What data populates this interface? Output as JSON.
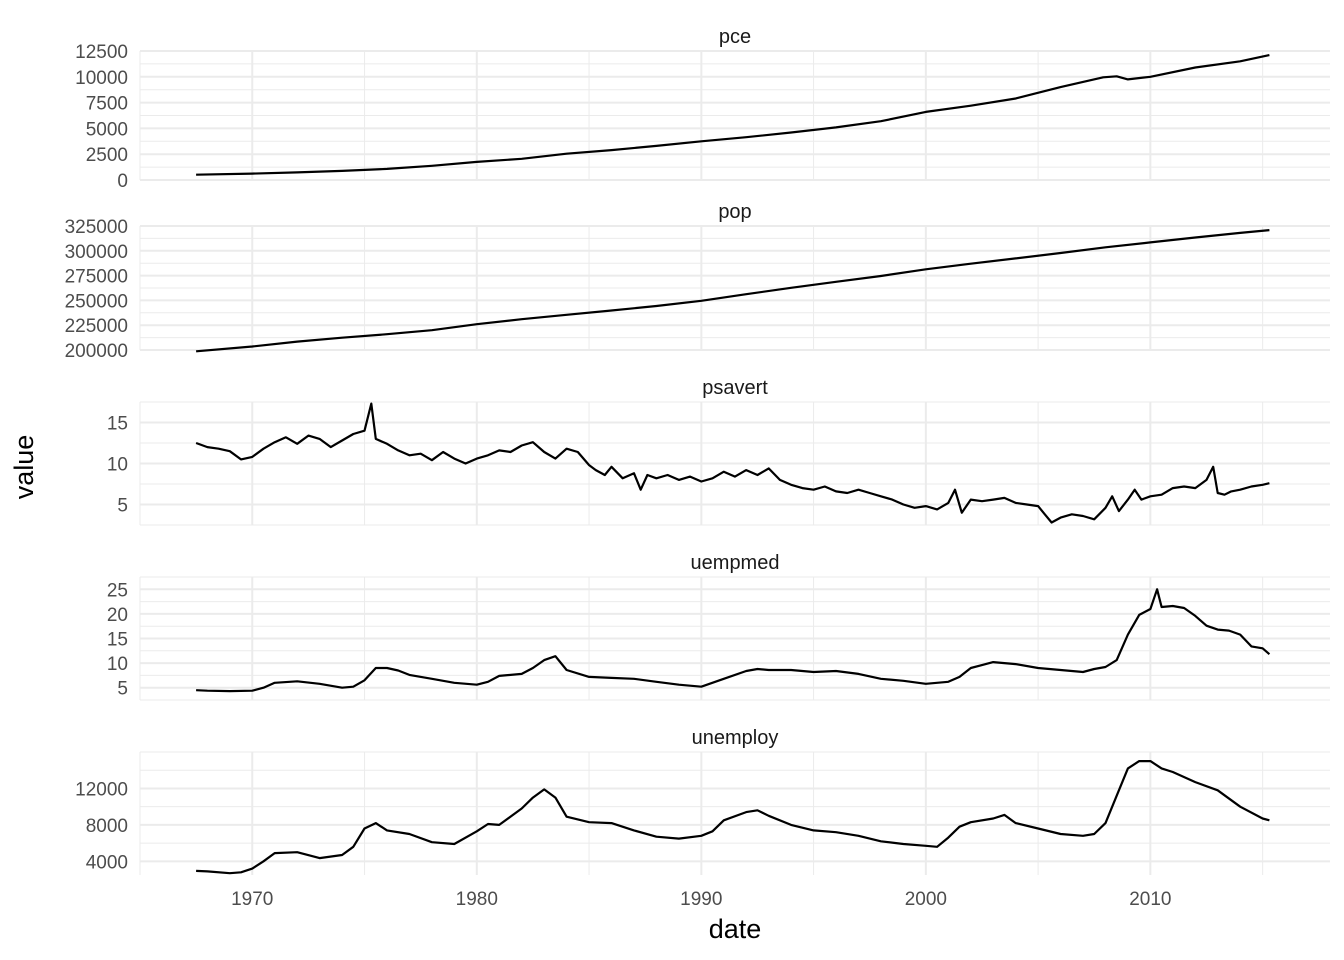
{
  "chart_data": {
    "type": "line",
    "xlabel": "date",
    "ylabel": "value",
    "x_ticks": [
      "1970",
      "1980",
      "1990",
      "2000",
      "2010"
    ],
    "x_range": [
      1965.0,
      2018.0
    ],
    "grid": true,
    "colors": {
      "line": "#000000",
      "grid": "#ebebeb",
      "text": "#4d4d4d"
    },
    "panels": [
      {
        "name": "pce",
        "ylim": [
          0,
          12500
        ],
        "y_ticks": [
          "0",
          "2500",
          "5000",
          "7500",
          "10000",
          "12500"
        ],
        "x": [
          1967.5,
          1970,
          1972,
          1974,
          1976,
          1978,
          1980,
          1982,
          1984,
          1986,
          1988,
          1990,
          1992,
          1994,
          1996,
          1998,
          2000,
          2002,
          2004,
          2006,
          2007.9,
          2008.5,
          2009.0,
          2010,
          2012,
          2014,
          2015.3
        ],
        "y": [
          510,
          620,
          740,
          880,
          1080,
          1380,
          1750,
          2050,
          2550,
          2900,
          3300,
          3750,
          4150,
          4600,
          5100,
          5700,
          6600,
          7200,
          7900,
          9000,
          9950,
          10050,
          9750,
          10000,
          10900,
          11500,
          12100
        ]
      },
      {
        "name": "pop",
        "ylim": [
          200000,
          325000
        ],
        "y_ticks": [
          "200000",
          "225000",
          "250000",
          "275000",
          "300000",
          "325000"
        ],
        "x": [
          1967.5,
          1970,
          1972,
          1974,
          1976,
          1978,
          1980,
          1982,
          1984,
          1986,
          1988,
          1990,
          1992,
          1994,
          1996,
          1998,
          2000,
          2002,
          2004,
          2006,
          2008,
          2010,
          2012,
          2014,
          2015.3
        ],
        "y": [
          198700,
          203500,
          208500,
          212400,
          215900,
          220000,
          226000,
          231000,
          235500,
          239800,
          244400,
          249600,
          256300,
          262700,
          268800,
          274600,
          281400,
          287000,
          292300,
          297800,
          303500,
          308500,
          313400,
          318000,
          320900
        ]
      },
      {
        "name": "psavert",
        "ylim": [
          2.5,
          17.5
        ],
        "y_ticks": [
          "5",
          "10",
          "15"
        ],
        "x": [
          1967.5,
          1968,
          1968.5,
          1969,
          1969.5,
          1970,
          1970.5,
          1971,
          1971.5,
          1972,
          1972.5,
          1973,
          1973.5,
          1974,
          1974.5,
          1975,
          1975.3,
          1975.5,
          1976,
          1976.5,
          1977,
          1977.5,
          1978,
          1978.5,
          1979,
          1979.5,
          1980,
          1980.5,
          1981,
          1981.5,
          1982,
          1982.5,
          1983,
          1983.5,
          1984,
          1984.5,
          1985,
          1985.3,
          1985.7,
          1986,
          1986.5,
          1987,
          1987.3,
          1987.6,
          1988,
          1988.5,
          1989,
          1989.5,
          1990,
          1990.5,
          1991,
          1991.5,
          1992,
          1992.5,
          1993,
          1993.5,
          1994,
          1994.5,
          1995,
          1995.5,
          1996,
          1996.5,
          1997,
          1997.5,
          1998,
          1998.5,
          1999,
          1999.5,
          2000,
          2000.5,
          2001,
          2001.3,
          2001.6,
          2002,
          2002.5,
          2003,
          2003.5,
          2004,
          2004.5,
          2005,
          2005.3,
          2005.6,
          2006,
          2006.5,
          2007,
          2007.5,
          2008,
          2008.3,
          2008.6,
          2009,
          2009.3,
          2009.6,
          2010,
          2010.5,
          2011,
          2011.5,
          2012,
          2012.5,
          2012.8,
          2013,
          2013.3,
          2013.6,
          2014,
          2014.5,
          2015,
          2015.3
        ],
        "y": [
          12.5,
          12.0,
          11.8,
          11.5,
          10.5,
          10.8,
          11.8,
          12.6,
          13.2,
          12.4,
          13.4,
          13.0,
          12.0,
          12.8,
          13.6,
          14.0,
          17.3,
          13.0,
          12.4,
          11.6,
          11.0,
          11.2,
          10.4,
          11.4,
          10.6,
          10.0,
          10.6,
          11.0,
          11.6,
          11.4,
          12.2,
          12.6,
          11.4,
          10.6,
          11.8,
          11.4,
          9.8,
          9.2,
          8.6,
          9.6,
          8.2,
          8.8,
          6.8,
          8.6,
          8.2,
          8.6,
          8.0,
          8.4,
          7.8,
          8.2,
          9.0,
          8.4,
          9.2,
          8.6,
          9.4,
          8.0,
          7.4,
          7.0,
          6.8,
          7.2,
          6.6,
          6.4,
          6.8,
          6.4,
          6.0,
          5.6,
          5.0,
          4.6,
          4.8,
          4.4,
          5.2,
          6.8,
          4.0,
          5.6,
          5.4,
          5.6,
          5.8,
          5.2,
          5.0,
          4.8,
          3.8,
          2.8,
          3.4,
          3.8,
          3.6,
          3.2,
          4.6,
          6.0,
          4.2,
          5.6,
          6.8,
          5.6,
          6.0,
          6.2,
          7.0,
          7.2,
          7.0,
          8.0,
          9.6,
          6.4,
          6.2,
          6.6,
          6.8,
          7.2,
          7.4,
          7.6
        ]
      },
      {
        "name": "uempmed",
        "ylim": [
          2.5,
          27.5
        ],
        "y_ticks": [
          "5",
          "10",
          "15",
          "20",
          "25"
        ],
        "x": [
          1967.5,
          1968,
          1969,
          1970,
          1970.5,
          1971,
          1972,
          1973,
          1974,
          1974.5,
          1975,
          1975.5,
          1976,
          1976.5,
          1977,
          1978,
          1979,
          1980,
          1980.5,
          1981,
          1982,
          1982.5,
          1983,
          1983.5,
          1984,
          1985,
          1986,
          1987,
          1988,
          1989,
          1990,
          1991,
          1992,
          1992.5,
          1993,
          1994,
          1995,
          1996,
          1997,
          1998,
          1999,
          2000,
          2001,
          2001.5,
          2002,
          2002.5,
          2003,
          2004,
          2005,
          2006,
          2007,
          2007.5,
          2008,
          2008.5,
          2009,
          2009.5,
          2010,
          2010.3,
          2010.5,
          2011,
          2011.5,
          2012,
          2012.5,
          2013,
          2013.5,
          2014,
          2014.5,
          2015,
          2015.3
        ],
        "y": [
          4.5,
          4.4,
          4.3,
          4.4,
          5.0,
          6.0,
          6.3,
          5.8,
          5.0,
          5.2,
          6.5,
          9.0,
          9.0,
          8.5,
          7.6,
          6.8,
          6.0,
          5.6,
          6.2,
          7.4,
          7.8,
          9.0,
          10.6,
          11.4,
          8.6,
          7.2,
          7.0,
          6.8,
          6.2,
          5.6,
          5.2,
          6.8,
          8.4,
          8.8,
          8.6,
          8.6,
          8.2,
          8.4,
          7.8,
          6.8,
          6.4,
          5.8,
          6.2,
          7.2,
          9.0,
          9.6,
          10.2,
          9.8,
          9.0,
          8.6,
          8.2,
          8.8,
          9.2,
          10.6,
          15.8,
          19.8,
          21.0,
          25.0,
          21.4,
          21.6,
          21.2,
          19.6,
          17.6,
          16.8,
          16.6,
          15.8,
          13.4,
          13.0,
          11.8
        ]
      },
      {
        "name": "unemploy",
        "ylim": [
          2500,
          16000
        ],
        "y_ticks": [
          "4000",
          "8000",
          "12000"
        ],
        "x": [
          1967.5,
          1968,
          1969,
          1969.5,
          1970,
          1970.5,
          1971,
          1972,
          1973,
          1974,
          1974.5,
          1975,
          1975.5,
          1976,
          1977,
          1978,
          1979,
          1980,
          1980.5,
          1981,
          1982,
          1982.5,
          1983,
          1983.5,
          1984,
          1985,
          1986,
          1987,
          1988,
          1989,
          1990,
          1990.5,
          1991,
          1992,
          1992.5,
          1993,
          1994,
          1995,
          1996,
          1997,
          1998,
          1999,
          2000,
          2000.5,
          2001,
          2001.5,
          2002,
          2003,
          2003.5,
          2004,
          2005,
          2006,
          2007,
          2007.5,
          2008,
          2008.5,
          2009,
          2009.5,
          2010,
          2010.5,
          2011,
          2012,
          2013,
          2014,
          2015,
          2015.3
        ],
        "y": [
          2950,
          2900,
          2700,
          2800,
          3200,
          4000,
          4900,
          5000,
          4350,
          4700,
          5600,
          7600,
          8200,
          7400,
          7000,
          6100,
          5900,
          7300,
          8100,
          8000,
          9800,
          11000,
          11900,
          11000,
          8900,
          8300,
          8200,
          7400,
          6700,
          6500,
          6800,
          7300,
          8500,
          9400,
          9600,
          9000,
          8000,
          7400,
          7200,
          6800,
          6200,
          5900,
          5700,
          5600,
          6600,
          7800,
          8300,
          8700,
          9100,
          8200,
          7600,
          7000,
          6800,
          7000,
          8200,
          11200,
          14200,
          15000,
          15000,
          14200,
          13800,
          12700,
          11800,
          10000,
          8700,
          8500
        ]
      }
    ]
  }
}
